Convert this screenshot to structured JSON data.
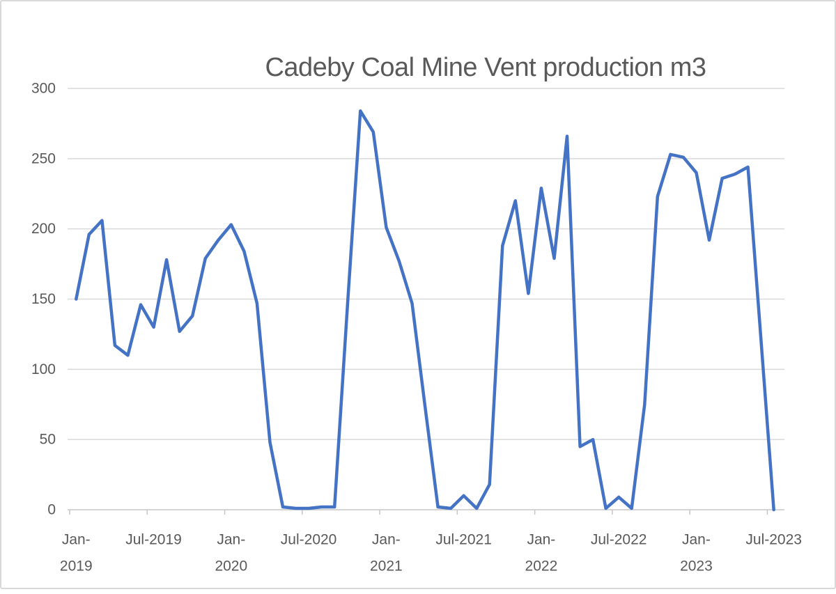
{
  "chart_data": {
    "type": "line",
    "title": "Cadeby Coal Mine Vent production m3",
    "xlabel": "",
    "ylabel": "",
    "ylim": [
      0,
      300
    ],
    "y_ticks": [
      0,
      50,
      100,
      150,
      200,
      250,
      300
    ],
    "grid": true,
    "legend": false,
    "line_color": "#4472C4",
    "text_color": "#595959",
    "gridline_color": "#d9d9d9",
    "axis_line_color": "#c6c6c6",
    "x_tick_labels": [
      {
        "line1": "Jan-",
        "line2": "2019"
      },
      {
        "line1": "Jul-2019",
        "line2": ""
      },
      {
        "line1": "Jan-",
        "line2": "2020"
      },
      {
        "line1": "Jul-2020",
        "line2": ""
      },
      {
        "line1": "Jan-",
        "line2": "2021"
      },
      {
        "line1": "Jul-2021",
        "line2": ""
      },
      {
        "line1": "Jan-",
        "line2": "2022"
      },
      {
        "line1": "Jul-2022",
        "line2": ""
      },
      {
        "line1": "Jan-",
        "line2": "2023"
      },
      {
        "line1": "Jul-2023",
        "line2": ""
      }
    ],
    "x": [
      "Jan-2019",
      "Feb-2019",
      "Mar-2019",
      "Apr-2019",
      "May-2019",
      "Jun-2019",
      "Jul-2019",
      "Aug-2019",
      "Sep-2019",
      "Oct-2019",
      "Nov-2019",
      "Dec-2019",
      "Jan-2020",
      "Feb-2020",
      "Mar-2020",
      "Apr-2020",
      "May-2020",
      "Jun-2020",
      "Jul-2020",
      "Aug-2020",
      "Sep-2020",
      "Oct-2020",
      "Nov-2020",
      "Dec-2020",
      "Jan-2021",
      "Feb-2021",
      "Mar-2021",
      "Apr-2021",
      "May-2021",
      "Jun-2021",
      "Jul-2021",
      "Aug-2021",
      "Sep-2021",
      "Oct-2021",
      "Nov-2021",
      "Dec-2021",
      "Jan-2022",
      "Feb-2022",
      "Mar-2022",
      "Apr-2022",
      "May-2022",
      "Jun-2022",
      "Jul-2022",
      "Aug-2022",
      "Sep-2022",
      "Oct-2022",
      "Nov-2022",
      "Dec-2022",
      "Jan-2023",
      "Feb-2023",
      "Mar-2023",
      "Apr-2023",
      "May-2023",
      "Jun-2023",
      "Jul-2023"
    ],
    "values": [
      150,
      196,
      206,
      117,
      110,
      146,
      130,
      178,
      127,
      138,
      179,
      192,
      203,
      184,
      147,
      48,
      2,
      1,
      1,
      2,
      2,
      145,
      284,
      269,
      201,
      177,
      147,
      74,
      2,
      1,
      10,
      1,
      18,
      188,
      220,
      154,
      229,
      179,
      266,
      45,
      50,
      1,
      9,
      1,
      75,
      223,
      253,
      251,
      240,
      192,
      236,
      239,
      244,
      122,
      0
    ]
  }
}
